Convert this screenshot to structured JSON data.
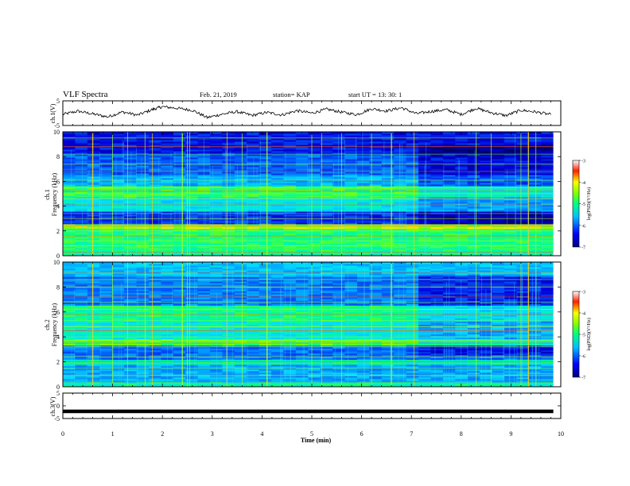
{
  "header": {
    "title": "VLF Spectra",
    "date": "Feb. 21, 2019",
    "station": "station= KAP",
    "start": "start  UT  =   13: 30: 1"
  },
  "chart_data": [
    {
      "type": "line",
      "panel": "ch1-voltage",
      "ylabel": "ch.1(V)",
      "ylim": [
        -5,
        5
      ],
      "yticks": [
        "5",
        "-5"
      ],
      "xlim": [
        0,
        10
      ],
      "x": [
        0.0,
        0.3,
        0.6,
        0.9,
        1.2,
        1.5,
        1.8,
        2.0,
        2.3,
        2.6,
        2.9,
        3.2,
        3.5,
        3.8,
        4.1,
        4.4,
        4.7,
        5.0,
        5.3,
        5.6,
        5.9,
        6.2,
        6.5,
        6.8,
        7.1,
        7.4,
        7.7,
        8.0,
        8.3,
        8.6,
        8.9,
        9.2,
        9.5,
        9.8
      ],
      "y": [
        -0.5,
        0.8,
        -0.3,
        -1.5,
        0.5,
        -0.8,
        1.5,
        2.6,
        2.0,
        1.2,
        -1.8,
        -0.4,
        0.6,
        -0.9,
        0.3,
        -0.7,
        1.0,
        0.0,
        1.6,
        0.4,
        -0.6,
        1.8,
        0.9,
        2.2,
        -0.2,
        0.7,
        1.4,
        -0.5,
        2.0,
        0.2,
        -1.0,
        1.2,
        0.5,
        -0.6
      ]
    },
    {
      "type": "heatmap",
      "panel": "ch1-spectrogram",
      "ylabel": "ch.1\nFrequency (kHz)",
      "ylim": [
        0,
        10
      ],
      "yticks": [
        "0",
        "2",
        "4",
        "6",
        "8",
        "10"
      ],
      "xlim": [
        0,
        10
      ],
      "colorbar": {
        "label": "log(PSD)(V²/Hz)",
        "range": [
          -7,
          -3
        ],
        "ticks": [
          "-3",
          "-4",
          "-5",
          "-6",
          "-7"
        ]
      }
    },
    {
      "type": "heatmap",
      "panel": "ch2-spectrogram",
      "ylabel": "ch.2\nFrequency (kHz)",
      "ylim": [
        0,
        10
      ],
      "yticks": [
        "0",
        "2",
        "4",
        "6",
        "8",
        "10"
      ],
      "xlim": [
        0,
        10
      ],
      "colorbar": {
        "label": "log(PSD)(V²/Hz)",
        "range": [
          -7,
          -3
        ],
        "ticks": [
          "-3",
          "-4",
          "-5",
          "-6",
          "-7"
        ]
      }
    },
    {
      "type": "line",
      "panel": "ch3-voltage",
      "ylabel": "ch.3(V)",
      "ylim": [
        -5,
        5
      ],
      "yticks": [
        "5",
        "0",
        "-5"
      ],
      "xlim": [
        0,
        10
      ],
      "x": [
        0,
        9.85
      ],
      "y": [
        -2.2,
        -2.2
      ]
    }
  ],
  "xaxis": {
    "label": "Time (min)",
    "ticks": [
      "0",
      "1",
      "2",
      "3",
      "4",
      "5",
      "6",
      "7",
      "8",
      "9",
      "10"
    ]
  },
  "colors": {
    "low": "#00006a",
    "mid": "#00e8ff",
    "green": "#2cff2c",
    "high": "#ff0000",
    "axis": "#000000"
  }
}
